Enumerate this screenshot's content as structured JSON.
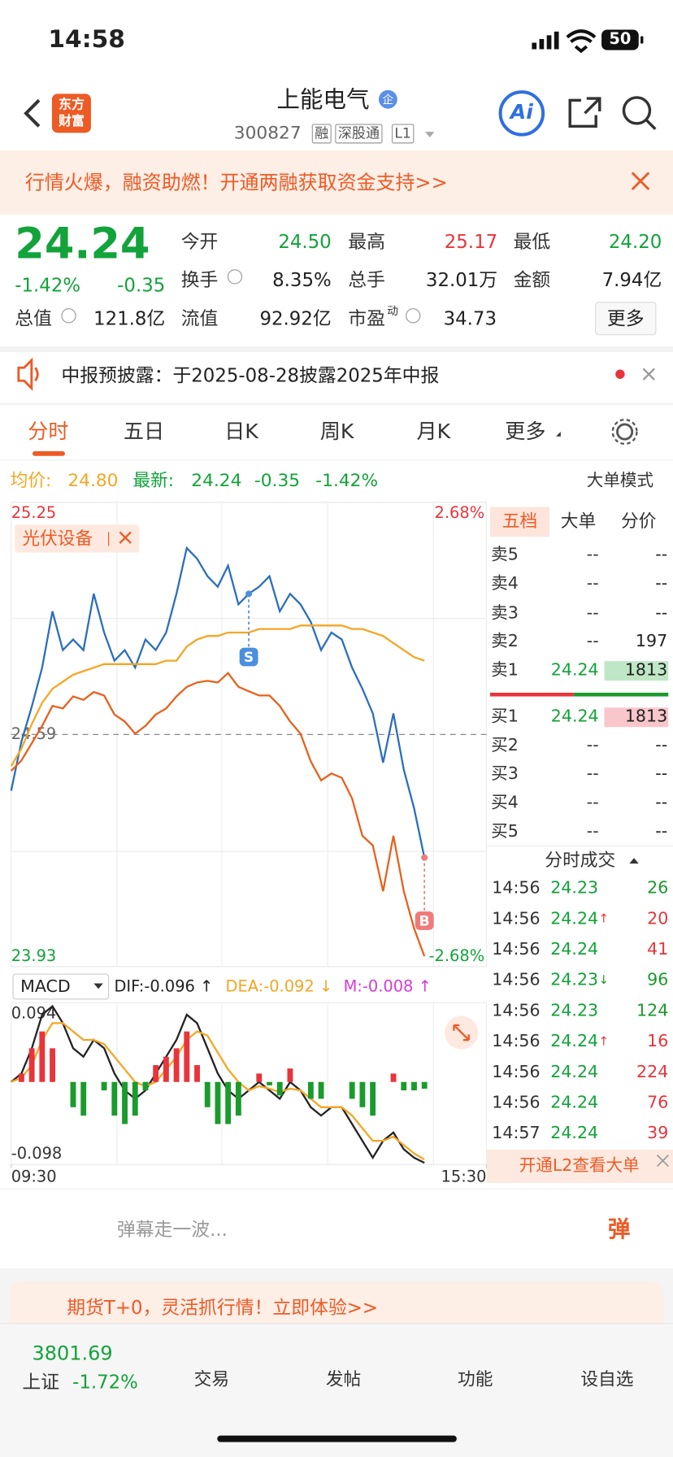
{
  "status_bar": {
    "time": "14:58",
    "battery": "50"
  },
  "header": {
    "logo": [
      "东方",
      "财富"
    ],
    "name": "上能电气",
    "badge": "企",
    "code": "300827",
    "tags": [
      "融",
      "深股通",
      "L1"
    ],
    "ai": "Ai"
  },
  "promo": {
    "text": "行情火爆，融资助燃！开通两融获取资金支持>>"
  },
  "quote": {
    "price": "24.24",
    "change_pct": "-1.42%",
    "change": "-0.35",
    "stats": [
      {
        "label": "今开",
        "value": "24.50",
        "color": "#12a33a"
      },
      {
        "label": "最高",
        "value": "25.17",
        "color": "#e8343a"
      },
      {
        "label": "最低",
        "value": "24.20",
        "color": "#12a33a"
      },
      {
        "label": "换手",
        "value": "8.35%"
      },
      {
        "label": "总手",
        "value": "32.01万"
      },
      {
        "label": "金额",
        "value": "7.94亿"
      },
      {
        "label": "总值",
        "value": "121.8亿"
      },
      {
        "label": "流值",
        "value": "92.92亿"
      },
      {
        "label": "市盈",
        "sup": "动",
        "value": "34.73"
      }
    ],
    "more": "更多"
  },
  "notice": {
    "text": "中报预披露：于2025-08-28披露2025年中报"
  },
  "tabs": [
    "分时",
    "五日",
    "日K",
    "周K",
    "月K",
    "更多"
  ],
  "summary": {
    "avg_label": "均价:",
    "avg": "24.80",
    "latest_label": "最新:",
    "latest": "24.24",
    "change": "-0.35",
    "change_pct": "-1.42%",
    "mode": "大单模式"
  },
  "chart_data": [
    {
      "type": "line",
      "ylim": [
        23.93,
        25.25
      ],
      "yticks": [
        25.25,
        24.59,
        23.93
      ],
      "y2lim": [
        -2.68,
        2.68
      ],
      "y2ticks": [
        {
          "value": 2.68,
          "label": "2.68%"
        },
        {
          "value": -2.68,
          "label": "-2.68%"
        }
      ],
      "xlim": [
        0,
        46
      ],
      "series": [
        {
          "color": "#2a6ebd",
          "values": [
            24.43,
            24.57,
            24.67,
            24.78,
            24.94,
            24.83,
            24.86,
            24.83,
            24.99,
            24.88,
            24.8,
            24.83,
            24.78,
            24.86,
            24.83,
            24.88,
            24.99,
            25.12,
            25.09,
            25.04,
            25.01,
            25.07,
            24.96,
            24.99,
            25.01,
            25.04,
            24.94,
            24.99,
            24.96,
            24.91,
            24.83,
            24.88,
            24.86,
            24.78,
            24.72,
            24.65,
            24.51,
            24.65,
            24.49,
            24.38,
            24.24
          ]
        },
        {
          "color": "#f5a623",
          "values": [
            24.5,
            24.55,
            24.62,
            24.68,
            24.72,
            24.74,
            24.76,
            24.77,
            24.78,
            24.79,
            24.79,
            24.79,
            24.79,
            24.79,
            24.79,
            24.8,
            24.8,
            24.84,
            24.86,
            24.87,
            24.87,
            24.88,
            24.88,
            24.88,
            24.89,
            24.89,
            24.89,
            24.89,
            24.9,
            24.9,
            24.9,
            24.9,
            24.9,
            24.89,
            24.89,
            24.88,
            24.87,
            24.85,
            24.83,
            24.81,
            24.8
          ]
        },
        {
          "name": "光伏设备",
          "color": "#e8601c",
          "axis": "y2",
          "values": [
            -0.42,
            -0.3,
            -0.1,
            0.1,
            0.33,
            0.3,
            0.44,
            0.4,
            0.49,
            0.45,
            0.23,
            0.15,
            0.01,
            0.1,
            0.23,
            0.3,
            0.44,
            0.55,
            0.6,
            0.62,
            0.6,
            0.71,
            0.55,
            0.5,
            0.45,
            0.45,
            0.33,
            0.15,
            0.01,
            -0.31,
            -0.53,
            -0.45,
            -0.5,
            -0.74,
            -1.17,
            -1.28,
            -1.81,
            -1.17,
            -1.81,
            -2.24,
            -2.56
          ]
        }
      ],
      "annotations": [
        {
          "text": "S",
          "index": 23,
          "color": "#4a8fe0"
        },
        {
          "text": "B",
          "index": 40,
          "color": "#f07a7a"
        }
      ]
    },
    {
      "type": "macd",
      "title": "MACD",
      "ylim": [
        -0.098,
        0.094
      ],
      "yticks": [
        0.094,
        -0.098
      ],
      "xlim": [
        0,
        46
      ],
      "xticks": [
        {
          "value": 0,
          "label": "09:30"
        },
        {
          "value": 46,
          "label": "15:30"
        }
      ],
      "readouts": [
        "DIF:-0.096 ↑",
        "DEA:-0.092 ↓",
        "M:-0.008 ↑"
      ],
      "series": [
        {
          "color": "#222222",
          "values": [
            0.0,
            0.01,
            0.04,
            0.08,
            0.09,
            0.07,
            0.04,
            0.03,
            0.05,
            0.04,
            0.01,
            -0.01,
            -0.02,
            -0.01,
            0.01,
            0.03,
            0.05,
            0.08,
            0.07,
            0.04,
            0.01,
            -0.01,
            -0.02,
            -0.01,
            0.0,
            -0.01,
            -0.02,
            0.0,
            -0.01,
            -0.03,
            -0.04,
            -0.03,
            -0.03,
            -0.05,
            -0.07,
            -0.09,
            -0.07,
            -0.06,
            -0.08,
            -0.09,
            -0.096
          ]
        },
        {
          "color": "#f5a623",
          "values": [
            0.0,
            0.005,
            0.02,
            0.05,
            0.07,
            0.07,
            0.06,
            0.05,
            0.05,
            0.045,
            0.03,
            0.015,
            0.0,
            -0.005,
            0.0,
            0.015,
            0.03,
            0.05,
            0.06,
            0.055,
            0.035,
            0.015,
            0.0,
            -0.01,
            -0.005,
            -0.008,
            -0.012,
            -0.008,
            -0.01,
            -0.02,
            -0.03,
            -0.03,
            -0.03,
            -0.04,
            -0.055,
            -0.07,
            -0.07,
            -0.065,
            -0.075,
            -0.085,
            -0.092
          ]
        },
        {
          "style": "bar",
          "color": "#d63bd6",
          "up_color": "#e8343a",
          "down_color": "#1a9b2c",
          "values": [
            0.0,
            0.01,
            0.04,
            0.06,
            0.04,
            0.0,
            -0.03,
            -0.04,
            0.0,
            -0.01,
            -0.04,
            -0.05,
            -0.04,
            -0.01,
            0.02,
            0.03,
            0.04,
            0.06,
            0.02,
            -0.03,
            -0.05,
            -0.05,
            -0.04,
            0.0,
            0.01,
            -0.004,
            -0.016,
            0.016,
            0.0,
            -0.02,
            -0.02,
            0.0,
            0.0,
            -0.02,
            -0.03,
            -0.04,
            0.0,
            0.01,
            -0.01,
            -0.01,
            -0.008
          ]
        }
      ]
    }
  ],
  "order_book": {
    "tabs": [
      "五档",
      "大单",
      "分价"
    ],
    "asks": [
      {
        "label": "卖5",
        "price": "--",
        "volume": "--"
      },
      {
        "label": "卖4",
        "price": "--",
        "volume": "--"
      },
      {
        "label": "卖3",
        "price": "--",
        "volume": "--"
      },
      {
        "label": "卖2",
        "price": "--",
        "volume": "197"
      },
      {
        "label": "卖1",
        "price": "24.24",
        "volume": "1813"
      }
    ],
    "bids": [
      {
        "label": "买1",
        "price": "24.24",
        "volume": "1813"
      },
      {
        "label": "买2",
        "price": "--",
        "volume": "--"
      },
      {
        "label": "买3",
        "price": "--",
        "volume": "--"
      },
      {
        "label": "买4",
        "price": "--",
        "volume": "--"
      },
      {
        "label": "买5",
        "price": "--",
        "volume": "--"
      }
    ]
  },
  "trades": {
    "title": "分时成交",
    "rows": [
      {
        "time": "14:56",
        "price": "24.23",
        "volume": "26",
        "color": "#1a9b2c"
      },
      {
        "time": "14:56",
        "price": "24.24",
        "arrow": "↑",
        "volume": "20",
        "color": "#e8343a"
      },
      {
        "time": "14:56",
        "price": "24.24",
        "volume": "41",
        "color": "#e8343a"
      },
      {
        "time": "14:56",
        "price": "24.23",
        "arrow": "↓",
        "volume": "96",
        "color": "#1a9b2c"
      },
      {
        "time": "14:56",
        "price": "24.23",
        "volume": "124",
        "color": "#1a9b2c"
      },
      {
        "time": "14:56",
        "price": "24.24",
        "arrow": "↑",
        "volume": "16",
        "color": "#e8343a"
      },
      {
        "time": "14:56",
        "price": "24.24",
        "volume": "224",
        "color": "#e8343a"
      },
      {
        "time": "14:56",
        "price": "24.24",
        "volume": "76",
        "color": "#e8343a"
      },
      {
        "time": "14:57",
        "price": "24.24",
        "volume": "39",
        "color": "#e8343a"
      }
    ],
    "l2": "开通L2查看大单"
  },
  "danmaku": {
    "placeholder": "弹幕走一波...",
    "button": "弹"
  },
  "promo2": {
    "text": "期货T+0，灵活抓行情！立即体验>>"
  },
  "index": {
    "value": "3801.69",
    "name": "上证",
    "change_pct": "-1.72%"
  },
  "nav": [
    "交易",
    "发帖",
    "功能",
    "设自选"
  ]
}
